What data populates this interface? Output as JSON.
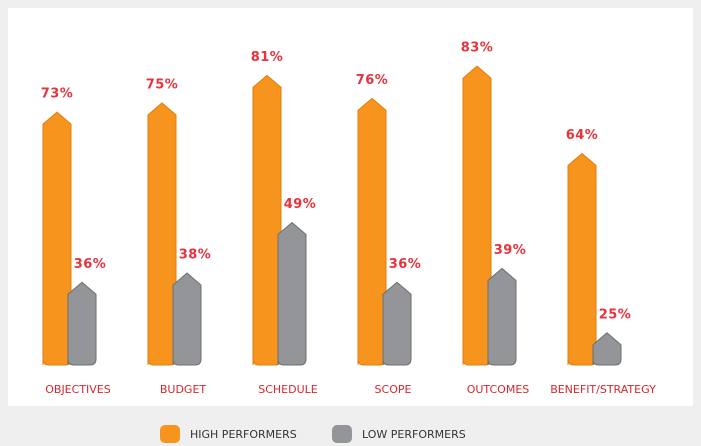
{
  "chart_data": {
    "type": "bar",
    "categories": [
      "OBJECTIVES",
      "BUDGET",
      "SCHEDULE",
      "SCOPE",
      "OUTCOMES",
      "BENEFIT/STRATEGY"
    ],
    "series": [
      {
        "name": "HIGH PERFORMERS",
        "color": "#f7941d",
        "values": [
          73,
          75,
          81,
          76,
          83,
          64
        ],
        "value_labels": [
          "73%",
          "75%",
          "81%",
          "76%",
          "83%",
          "64%"
        ]
      },
      {
        "name": "LOW PERFORMERS",
        "color": "#939598",
        "values": [
          36,
          38,
          49,
          36,
          39,
          25
        ],
        "value_labels": [
          "36%",
          "38%",
          "49%",
          "36%",
          "39%",
          "25%"
        ]
      }
    ],
    "ylim": [
      18,
      90
    ]
  }
}
